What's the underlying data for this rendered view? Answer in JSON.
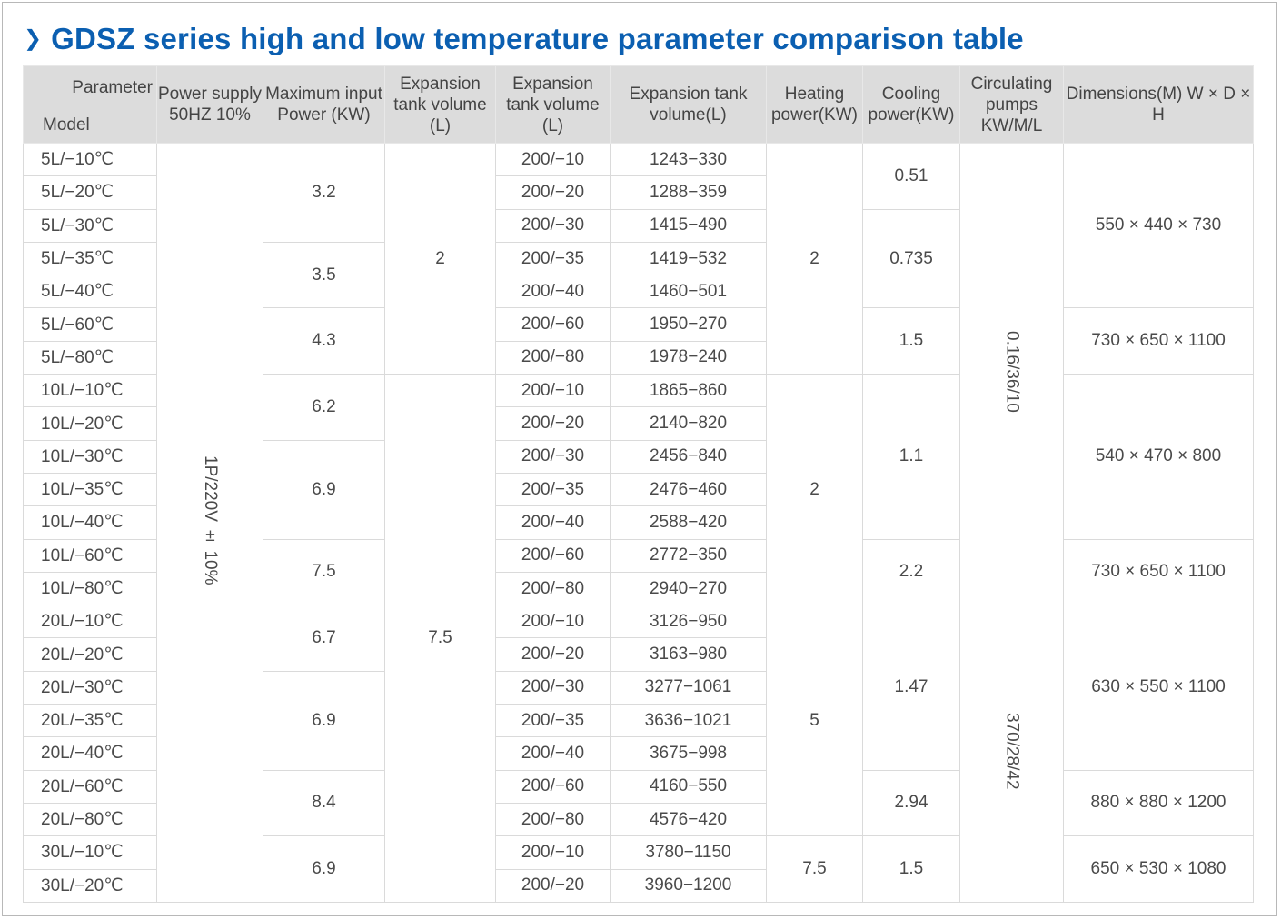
{
  "title": "GDSZ series high and low temperature parameter comparison table",
  "icons": {
    "title_marker": "chevron-right-icon"
  },
  "colors": {
    "title": "#0b5fb1",
    "header_bg": "#dcdcdc",
    "border": "#d3d3d3"
  },
  "headers": {
    "parameter": "Parameter",
    "model": "Model",
    "power_supply": "Power supply 50HZ 10%",
    "max_input_power": "Maximum input Power (KW)",
    "expansion_tank_volume_1": "Expansion tank volume (L)",
    "expansion_tank_volume_2": "Expansion tank volume (L)",
    "expansion_tank_volume_3": "Expansion tank volume(L)",
    "heating_power": "Heating power(KW)",
    "cooling_power": "Cooling power(KW)",
    "circulating_pumps": "Circulating pumps KW/M/L",
    "dimensions": "Dimensions(M) W × D × H"
  },
  "models": [
    "5L/−10℃",
    "5L/−20℃",
    "5L/−30℃",
    "5L/−35℃",
    "5L/−40℃",
    "5L/−60℃",
    "5L/−80℃",
    "10L/−10℃",
    "10L/−20℃",
    "10L/−30℃",
    "10L/−35℃",
    "10L/−40℃",
    "10L/−60℃",
    "10L/−80℃",
    "20L/−10℃",
    "20L/−20℃",
    "20L/−30℃",
    "20L/−35℃",
    "20L/−40℃",
    "20L/−60℃",
    "20L/−80℃",
    "30L/−10℃",
    "30L/−20℃"
  ],
  "tank_col": [
    "200/−10",
    "200/−20",
    "200/−30",
    "200/−35",
    "200/−40",
    "200/−60",
    "200/−80",
    "200/−10",
    "200/−20",
    "200/−30",
    "200/−35",
    "200/−40",
    "200/−60",
    "200/−80",
    "200/−10",
    "200/−20",
    "200/−30",
    "200/−35",
    "200/−40",
    "200/−60",
    "200/−80",
    "200/−10",
    "200/−20"
  ],
  "tank_volume_col": [
    "1243−330",
    "1288−359",
    "1415−490",
    "1419−532",
    "1460−501",
    "1950−270",
    "1978−240",
    "1865−860",
    "2140−820",
    "2456−840",
    "2476−460",
    "2588−420",
    "2772−350",
    "2940−270",
    "3126−950",
    "3163−980",
    "3277−1061",
    "3636−1021",
    "3675−998",
    "4160−550",
    "4576−420",
    "3780−1150",
    "3960−1200"
  ],
  "power_supply": "1P/220V ± 10%",
  "max_input_power": [
    "3.2",
    "3.5",
    "4.3",
    "6.2",
    "6.9",
    "7.5",
    "6.7",
    "6.9",
    "8.4",
    "6.9"
  ],
  "expansion_tank_volume": [
    "2",
    "7.5"
  ],
  "heating_power": [
    "2",
    "2",
    "5",
    "7.5"
  ],
  "cooling_power": [
    "0.51",
    "0.735",
    "1.5",
    "1.1",
    "2.2",
    "1.47",
    "2.94",
    "1.5"
  ],
  "circulating_pumps": [
    "0.16/36/10",
    "370/28/42"
  ],
  "dimensions": [
    "550 × 440 × 730",
    "730 × 650 × 1100",
    "540 × 470 × 800",
    "730 × 650 × 1100",
    "630 × 550 × 1100",
    "880 × 880 × 1200",
    "650 × 530 × 1080"
  ]
}
